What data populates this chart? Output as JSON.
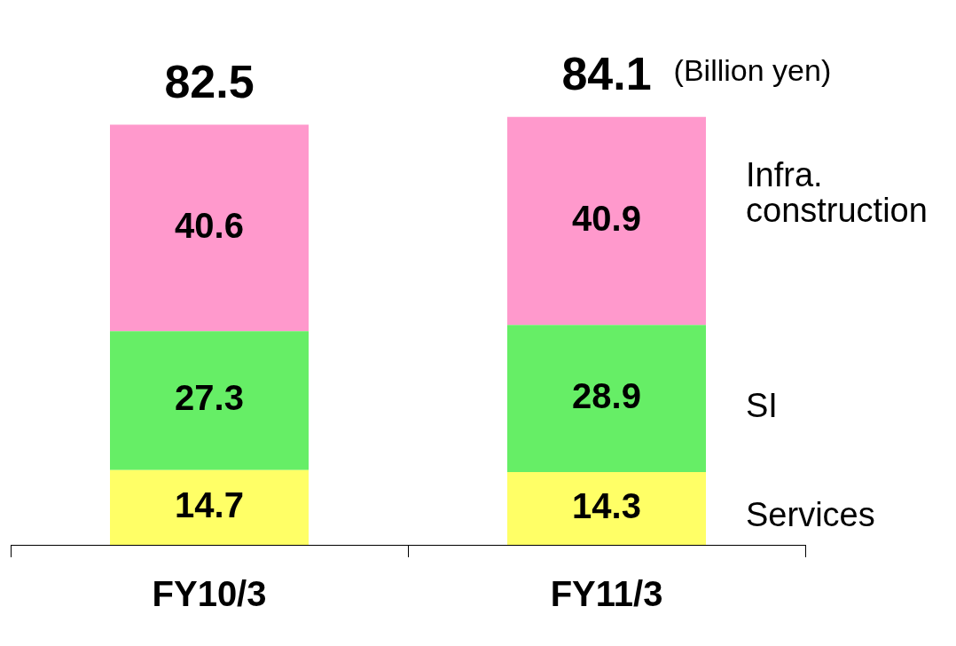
{
  "chart_data": {
    "type": "bar",
    "stacked": true,
    "categories": [
      "FY10/3",
      "FY11/3"
    ],
    "series": [
      {
        "name": "Services",
        "color": "#ffff66",
        "values": [
          14.7,
          14.3
        ]
      },
      {
        "name": "SI",
        "color": "#66ee66",
        "values": [
          27.3,
          28.9
        ]
      },
      {
        "name": "Infra. construction",
        "color": "#ff99cc",
        "values": [
          40.6,
          40.9
        ]
      }
    ],
    "data_labels": true,
    "totals": [
      "82.5",
      "84.1"
    ],
    "annotations": [
      "(Billion yen)"
    ]
  }
}
